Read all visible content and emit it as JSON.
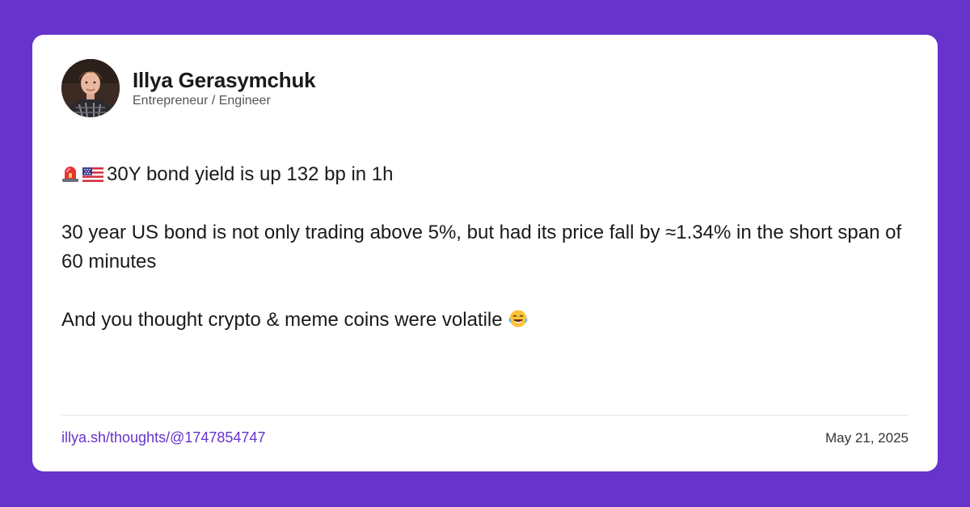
{
  "author": {
    "name": "Illya Gerasymchuk",
    "role": "Entrepreneur / Engineer",
    "avatar_icon": "person-avatar-icon"
  },
  "post": {
    "icons": [
      "rotating-light-emoji-icon",
      "us-flag-emoji-icon",
      "tears-of-joy-emoji-icon"
    ],
    "line1": "30Y bond yield is up 132 bp in 1h",
    "line2": "30 year US bond is not only trading above 5%, but had its price fall by ≈1.34% in the short span of 60 minutes",
    "line3": "And you thought crypto & meme coins were volatile"
  },
  "footer": {
    "link": "illya.sh/thoughts/@1747854747",
    "date": "May 21, 2025"
  },
  "colors": {
    "background": "#6633CC",
    "card": "#FFFFFF",
    "link": "#6633CC"
  }
}
